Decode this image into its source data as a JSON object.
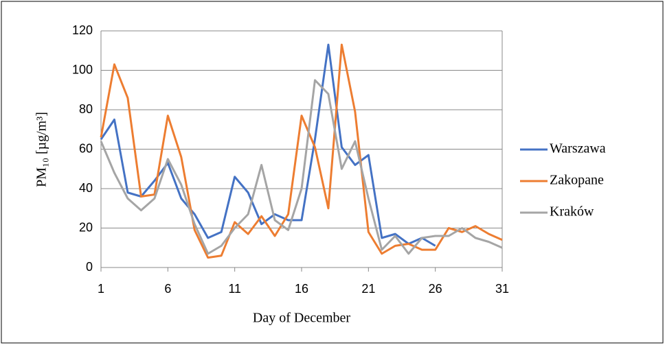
{
  "chart_data": {
    "type": "line",
    "x_label": "Day of December",
    "y_label": "PM₁₀  [µg/m³]",
    "x": [
      1,
      2,
      3,
      4,
      5,
      6,
      7,
      8,
      9,
      10,
      11,
      12,
      13,
      14,
      15,
      16,
      17,
      18,
      19,
      20,
      21,
      22,
      23,
      24,
      25,
      26,
      27,
      28,
      29,
      30,
      31
    ],
    "series": [
      {
        "name": "Warszawa",
        "color": "#4472c4",
        "values": [
          65,
          75,
          38,
          36,
          44,
          53,
          35,
          27,
          15,
          18,
          46,
          38,
          22,
          27,
          24,
          24,
          65,
          113,
          61,
          52,
          57,
          15,
          17,
          12,
          15,
          11,
          null,
          null,
          null,
          null,
          null
        ]
      },
      {
        "name": "Zakopane",
        "color": "#ed7d31",
        "values": [
          66,
          103,
          86,
          36,
          37,
          77,
          56,
          19,
          5,
          6,
          23,
          17,
          26,
          16,
          27,
          77,
          61,
          30,
          113,
          79,
          18,
          7,
          11,
          12,
          9,
          9,
          20,
          18,
          21,
          17,
          14
        ]
      },
      {
        "name": "Kraków",
        "color": "#a5a5a5",
        "values": [
          64,
          48,
          35,
          29,
          35,
          55,
          42,
          22,
          7,
          11,
          20,
          27,
          52,
          24,
          19,
          40,
          95,
          88,
          50,
          64,
          35,
          9,
          16,
          7,
          15,
          16,
          16,
          20,
          15,
          13,
          10
        ]
      }
    ],
    "xlim": [
      1,
      31
    ],
    "xticks": [
      1,
      6,
      11,
      16,
      21,
      26,
      31
    ],
    "ylim": [
      0,
      120
    ],
    "yticks": [
      0,
      20,
      40,
      60,
      80,
      100,
      120
    ],
    "grid": true,
    "legend": "right"
  }
}
